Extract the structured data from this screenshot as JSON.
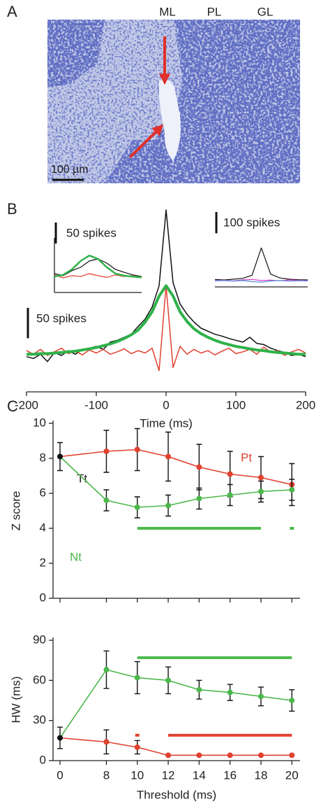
{
  "image_panel": {
    "label": "A",
    "layers": [
      "ML",
      "PL",
      "GL"
    ],
    "scale_bar": "100 µm"
  },
  "chart_data": [
    {
      "type": "line",
      "panel_label": "B",
      "xlabel": "Time (ms)",
      "x": [
        -200,
        -190,
        -180,
        -170,
        -160,
        -150,
        -140,
        -130,
        -120,
        -110,
        -100,
        -90,
        -80,
        -70,
        -60,
        -50,
        -40,
        -30,
        -20,
        -10,
        0,
        10,
        20,
        30,
        40,
        50,
        60,
        70,
        80,
        90,
        100,
        110,
        120,
        130,
        140,
        150,
        160,
        170,
        180,
        190,
        200
      ],
      "xlim": [
        -200,
        200
      ],
      "xticks": [
        -200,
        -100,
        0,
        100,
        200
      ],
      "ylim": [
        0,
        300
      ],
      "scale_bar": {
        "value": 50,
        "label": "50 spikes"
      },
      "series": [
        {
          "color": "#111111",
          "width": 1.5,
          "values": [
            58,
            55,
            62,
            50,
            65,
            60,
            68,
            62,
            70,
            72,
            75,
            70,
            82,
            85,
            90,
            95,
            108,
            120,
            140,
            175,
            300,
            180,
            145,
            128,
            115,
            105,
            100,
            95,
            92,
            88,
            85,
            82,
            90,
            80,
            78,
            72,
            68,
            65,
            60,
            62,
            58
          ]
        },
        {
          "color": "#e0412f",
          "width": 1.5,
          "values": [
            68,
            62,
            70,
            60,
            66,
            72,
            63,
            67,
            61,
            69,
            64,
            70,
            62,
            66,
            71,
            63,
            68,
            64,
            72,
            35,
            175,
            40,
            75,
            62,
            70,
            64,
            68,
            61,
            67,
            72,
            63,
            66,
            70,
            62,
            74,
            65,
            68,
            60,
            66,
            70,
            64
          ]
        },
        {
          "color": "#2fb24a",
          "width": 4,
          "values": [
            62,
            62,
            63,
            63,
            64,
            65,
            66,
            67,
            69,
            71,
            73,
            76,
            79,
            83,
            88,
            94,
            102,
            115,
            132,
            158,
            175,
            158,
            132,
            116,
            104,
            96,
            90,
            85,
            81,
            78,
            75,
            73,
            71,
            69,
            68,
            66,
            65,
            64,
            63,
            62,
            62
          ]
        }
      ]
    },
    {
      "type": "line",
      "x": [
        -200,
        -160,
        -120,
        -80,
        -40,
        0,
        40,
        80,
        120,
        160,
        200
      ],
      "xlim": [
        -200,
        200
      ],
      "ylim": [
        0,
        130
      ],
      "scale_bar": {
        "value": 50,
        "label": "50 spikes"
      },
      "series": [
        {
          "color": "#111111",
          "width": 1.2,
          "values": [
            45,
            40,
            52,
            60,
            75,
            80,
            70,
            55,
            48,
            42,
            38
          ]
        },
        {
          "color": "#e0412f",
          "width": 1.2,
          "values": [
            42,
            35,
            40,
            38,
            45,
            40,
            36,
            42,
            38,
            40,
            35
          ]
        },
        {
          "color": "#2fb24a",
          "width": 2.5,
          "values": [
            38,
            42,
            55,
            75,
            88,
            80,
            60,
            45,
            40,
            38,
            36
          ]
        }
      ]
    },
    {
      "type": "line",
      "x": [
        -200,
        -160,
        -120,
        -80,
        -40,
        0,
        40,
        80,
        120,
        160,
        200
      ],
      "xlim": [
        -200,
        200
      ],
      "ylim": [
        0,
        230
      ],
      "scale_bar": {
        "value": 100,
        "label": "100 spikes"
      },
      "series": [
        {
          "color": "#111111",
          "width": 1.2,
          "values": [
            35,
            33,
            36,
            40,
            55,
            183,
            60,
            42,
            36,
            34,
            33
          ]
        },
        {
          "color": "#d63cc8",
          "width": 1.2,
          "values": [
            30,
            32,
            28,
            33,
            35,
            30,
            32,
            29,
            33,
            31,
            30
          ]
        },
        {
          "color": "#4a8fd8",
          "width": 1.2,
          "values": [
            28,
            30,
            27,
            30,
            25,
            22,
            28,
            30,
            27,
            29,
            28
          ]
        }
      ]
    },
    {
      "type": "errorline",
      "panel_label": "C",
      "ylabel": "Z score",
      "x": [
        0,
        8,
        10,
        12,
        14,
        16,
        18,
        20
      ],
      "ylim": [
        0,
        10
      ],
      "yticks": [
        0,
        2,
        4,
        6,
        8,
        10
      ],
      "series": [
        {
          "name": "Tt",
          "color": "#111111",
          "values": [
            8.1,
            null,
            null,
            null,
            null,
            null,
            null,
            null
          ],
          "errors": [
            0.8,
            null,
            null,
            null,
            null,
            null,
            null,
            null
          ]
        },
        {
          "name": "Pt",
          "color": "#e0412f",
          "values": [
            null,
            8.4,
            8.5,
            8.1,
            7.5,
            7.1,
            6.9,
            6.5
          ],
          "errors": [
            null,
            1.2,
            1.2,
            1.4,
            1.3,
            1.3,
            1.2,
            1.2
          ]
        },
        {
          "name": "Nt",
          "color": "#4cb84c",
          "values": [
            null,
            5.6,
            5.2,
            5.3,
            5.7,
            5.9,
            6.1,
            6.2
          ],
          "errors": [
            null,
            0.6,
            0.6,
            0.6,
            0.6,
            0.6,
            0.6,
            0.6
          ]
        }
      ],
      "sig_bars": [
        {
          "from": 10,
          "to": 18,
          "y": 4,
          "color": "#4cb84c"
        },
        {
          "from": 20,
          "to": 20,
          "y": 4,
          "color": "#4cb84c"
        }
      ]
    },
    {
      "type": "errorline",
      "ylabel": "HW (ms)",
      "xlabel": "Threshold (ms)",
      "x": [
        0,
        8,
        10,
        12,
        14,
        16,
        18,
        20
      ],
      "xticks": [
        0,
        8,
        10,
        12,
        14,
        16,
        18,
        20
      ],
      "ylim": [
        0,
        90
      ],
      "yticks": [
        0,
        30,
        60,
        90
      ],
      "series": [
        {
          "color": "#111111",
          "values": [
            17,
            null,
            null,
            null,
            null,
            null,
            null,
            null
          ],
          "errors": [
            8,
            null,
            null,
            null,
            null,
            null,
            null,
            null
          ]
        },
        {
          "color": "#4cb84c",
          "values": [
            null,
            68,
            62,
            60,
            53,
            51,
            48,
            45
          ],
          "errors": [
            null,
            14,
            12,
            10,
            7,
            6,
            7,
            8
          ]
        },
        {
          "color": "#e0412f",
          "values": [
            null,
            14,
            10,
            4,
            4,
            4,
            4,
            4
          ],
          "errors": [
            null,
            9,
            5,
            null,
            null,
            null,
            null,
            null
          ]
        }
      ],
      "sig_bars": [
        {
          "from": 10,
          "to": 20,
          "y": 77,
          "color": "#4cb84c"
        },
        {
          "from": 10,
          "to": 10,
          "y": 19,
          "color": "#e0412f"
        },
        {
          "from": 12,
          "to": 20,
          "y": 19,
          "color": "#e0412f"
        }
      ]
    }
  ]
}
